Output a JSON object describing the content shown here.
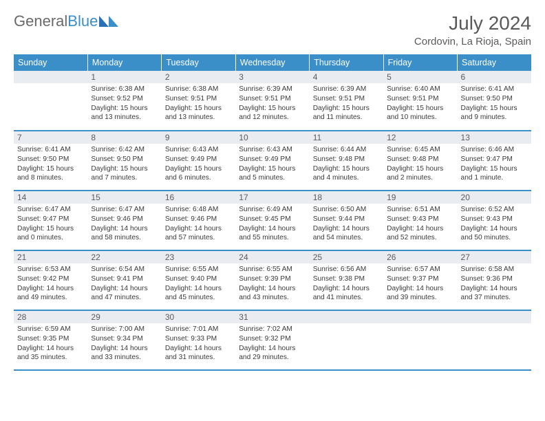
{
  "brand": {
    "part1": "General",
    "part2": "Blue"
  },
  "title": "July 2024",
  "location": "Cordovin, La Rioja, Spain",
  "colors": {
    "header_bg": "#3a8fc8",
    "daynum_bg": "#e9edf1",
    "border": "#3a8fc8",
    "text": "#3a3a3a",
    "title_text": "#5a5a5a"
  },
  "day_headers": [
    "Sunday",
    "Monday",
    "Tuesday",
    "Wednesday",
    "Thursday",
    "Friday",
    "Saturday"
  ],
  "weeks": [
    [
      {
        "n": "",
        "sr": "",
        "ss": "",
        "dl": ""
      },
      {
        "n": "1",
        "sr": "6:38 AM",
        "ss": "9:52 PM",
        "dl": "15 hours and 13 minutes."
      },
      {
        "n": "2",
        "sr": "6:38 AM",
        "ss": "9:51 PM",
        "dl": "15 hours and 13 minutes."
      },
      {
        "n": "3",
        "sr": "6:39 AM",
        "ss": "9:51 PM",
        "dl": "15 hours and 12 minutes."
      },
      {
        "n": "4",
        "sr": "6:39 AM",
        "ss": "9:51 PM",
        "dl": "15 hours and 11 minutes."
      },
      {
        "n": "5",
        "sr": "6:40 AM",
        "ss": "9:51 PM",
        "dl": "15 hours and 10 minutes."
      },
      {
        "n": "6",
        "sr": "6:41 AM",
        "ss": "9:50 PM",
        "dl": "15 hours and 9 minutes."
      }
    ],
    [
      {
        "n": "7",
        "sr": "6:41 AM",
        "ss": "9:50 PM",
        "dl": "15 hours and 8 minutes."
      },
      {
        "n": "8",
        "sr": "6:42 AM",
        "ss": "9:50 PM",
        "dl": "15 hours and 7 minutes."
      },
      {
        "n": "9",
        "sr": "6:43 AM",
        "ss": "9:49 PM",
        "dl": "15 hours and 6 minutes."
      },
      {
        "n": "10",
        "sr": "6:43 AM",
        "ss": "9:49 PM",
        "dl": "15 hours and 5 minutes."
      },
      {
        "n": "11",
        "sr": "6:44 AM",
        "ss": "9:48 PM",
        "dl": "15 hours and 4 minutes."
      },
      {
        "n": "12",
        "sr": "6:45 AM",
        "ss": "9:48 PM",
        "dl": "15 hours and 2 minutes."
      },
      {
        "n": "13",
        "sr": "6:46 AM",
        "ss": "9:47 PM",
        "dl": "15 hours and 1 minute."
      }
    ],
    [
      {
        "n": "14",
        "sr": "6:47 AM",
        "ss": "9:47 PM",
        "dl": "15 hours and 0 minutes."
      },
      {
        "n": "15",
        "sr": "6:47 AM",
        "ss": "9:46 PM",
        "dl": "14 hours and 58 minutes."
      },
      {
        "n": "16",
        "sr": "6:48 AM",
        "ss": "9:46 PM",
        "dl": "14 hours and 57 minutes."
      },
      {
        "n": "17",
        "sr": "6:49 AM",
        "ss": "9:45 PM",
        "dl": "14 hours and 55 minutes."
      },
      {
        "n": "18",
        "sr": "6:50 AM",
        "ss": "9:44 PM",
        "dl": "14 hours and 54 minutes."
      },
      {
        "n": "19",
        "sr": "6:51 AM",
        "ss": "9:43 PM",
        "dl": "14 hours and 52 minutes."
      },
      {
        "n": "20",
        "sr": "6:52 AM",
        "ss": "9:43 PM",
        "dl": "14 hours and 50 minutes."
      }
    ],
    [
      {
        "n": "21",
        "sr": "6:53 AM",
        "ss": "9:42 PM",
        "dl": "14 hours and 49 minutes."
      },
      {
        "n": "22",
        "sr": "6:54 AM",
        "ss": "9:41 PM",
        "dl": "14 hours and 47 minutes."
      },
      {
        "n": "23",
        "sr": "6:55 AM",
        "ss": "9:40 PM",
        "dl": "14 hours and 45 minutes."
      },
      {
        "n": "24",
        "sr": "6:55 AM",
        "ss": "9:39 PM",
        "dl": "14 hours and 43 minutes."
      },
      {
        "n": "25",
        "sr": "6:56 AM",
        "ss": "9:38 PM",
        "dl": "14 hours and 41 minutes."
      },
      {
        "n": "26",
        "sr": "6:57 AM",
        "ss": "9:37 PM",
        "dl": "14 hours and 39 minutes."
      },
      {
        "n": "27",
        "sr": "6:58 AM",
        "ss": "9:36 PM",
        "dl": "14 hours and 37 minutes."
      }
    ],
    [
      {
        "n": "28",
        "sr": "6:59 AM",
        "ss": "9:35 PM",
        "dl": "14 hours and 35 minutes."
      },
      {
        "n": "29",
        "sr": "7:00 AM",
        "ss": "9:34 PM",
        "dl": "14 hours and 33 minutes."
      },
      {
        "n": "30",
        "sr": "7:01 AM",
        "ss": "9:33 PM",
        "dl": "14 hours and 31 minutes."
      },
      {
        "n": "31",
        "sr": "7:02 AM",
        "ss": "9:32 PM",
        "dl": "14 hours and 29 minutes."
      },
      {
        "n": "",
        "sr": "",
        "ss": "",
        "dl": ""
      },
      {
        "n": "",
        "sr": "",
        "ss": "",
        "dl": ""
      },
      {
        "n": "",
        "sr": "",
        "ss": "",
        "dl": ""
      }
    ]
  ]
}
